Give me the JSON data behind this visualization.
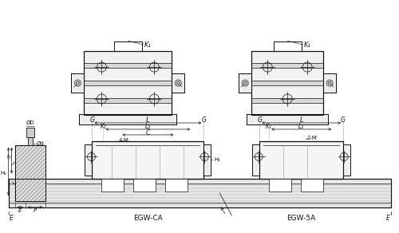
{
  "bg_color": "#ffffff",
  "line_color": "#111111",
  "gray_color": "#999999",
  "med_gray": "#aaaaaa",
  "light_gray": "#cccccc",
  "labels": {
    "K1": "K₁",
    "G": "G",
    "L": "L",
    "L1": "L₁",
    "C": "C",
    "4M": "4-M",
    "2M": "2-M",
    "EGW_CA": "EGW-CA",
    "EGW_SA": "EGW-5A",
    "OD": "ØD",
    "Od": "Ød",
    "H0": "H₀",
    "h": "h",
    "E": "E",
    "P": "P",
    "H1": "H₁"
  },
  "figsize": [
    5.0,
    2.92
  ],
  "dpi": 100
}
